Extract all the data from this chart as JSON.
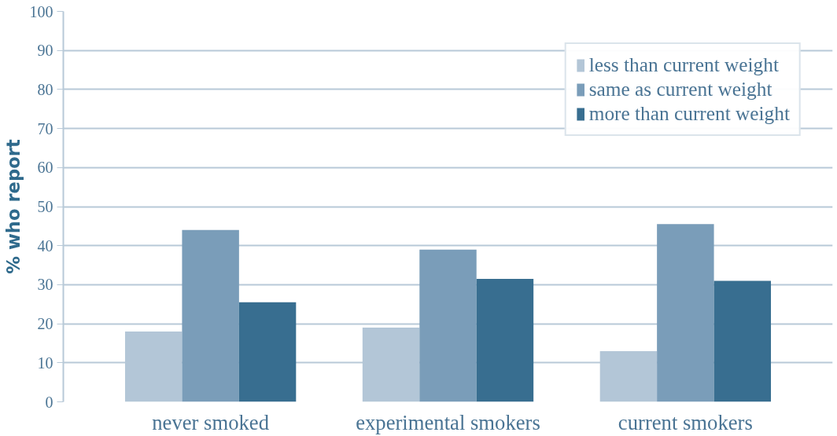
{
  "chart_data": {
    "type": "bar",
    "ylabel": "% who report",
    "categories": [
      "never smoked",
      "experimental smokers",
      "current smokers"
    ],
    "series": [
      {
        "name": "less than current weight",
        "color": "#b3c6d7",
        "values": [
          18,
          19,
          13
        ]
      },
      {
        "name": "same as current weight",
        "color": "#7a9db9",
        "values": [
          44,
          39,
          45.5
        ]
      },
      {
        "name": "more than current weight",
        "color": "#386e90",
        "values": [
          25.5,
          31.5,
          31
        ]
      }
    ],
    "ylim": [
      0,
      100
    ],
    "yticks": [
      0,
      10,
      20,
      30,
      40,
      50,
      60,
      70,
      80,
      90,
      100
    ],
    "grid": "y",
    "legend": "top right"
  }
}
